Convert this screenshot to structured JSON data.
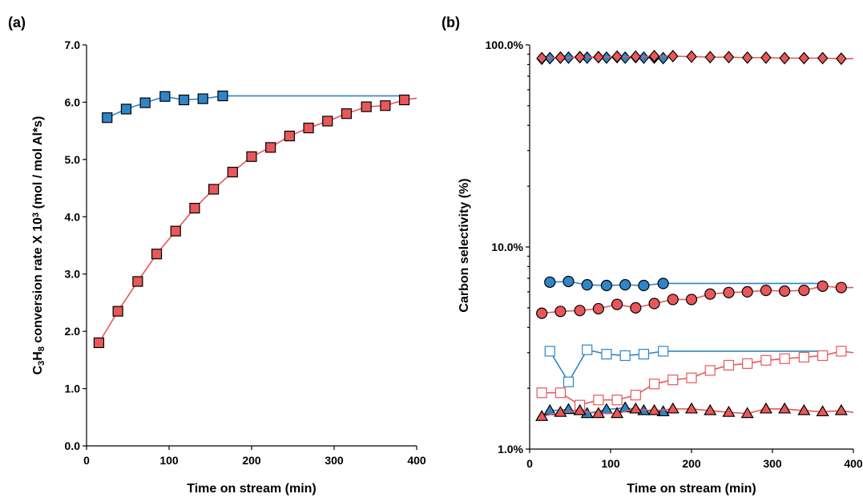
{
  "colors": {
    "blue": "#2E86C9",
    "red": "#E8575A",
    "blue_line": "#2E86C9",
    "red_line": "#E8575A"
  },
  "chart_data": [
    {
      "type": "line",
      "panel_label": "(a)",
      "xlabel": "Time on stream (min)",
      "ylabel_parts": [
        "C",
        "3",
        "H",
        "8",
        " conversion rate X 10",
        "3",
        "  (mol / mol Al*s)"
      ],
      "xlim": [
        0,
        400
      ],
      "ylim": [
        0,
        7
      ],
      "x_ticks": [
        0,
        100,
        200,
        300,
        400
      ],
      "x_tick_labels": [
        "0",
        "100",
        "200",
        "300",
        "400"
      ],
      "y_ticks": [
        0,
        1,
        2,
        3,
        4,
        5,
        6,
        7
      ],
      "y_tick_labels": [
        "0.0",
        "1.0",
        "2.0",
        "3.0",
        "4.0",
        "5.0",
        "6.0",
        "7.0"
      ],
      "series": [
        {
          "color": "blue",
          "marker": "square",
          "filled": true,
          "x": [
            25,
            48,
            71,
            95,
            118,
            141,
            165
          ],
          "y": [
            5.73,
            5.88,
            5.99,
            6.1,
            6.04,
            6.06,
            6.11
          ],
          "line_extend_to": [
            385,
            6.11
          ]
        },
        {
          "color": "red",
          "marker": "square",
          "filled": true,
          "x": [
            15,
            38,
            62,
            85,
            108,
            131,
            154,
            177,
            200,
            223,
            246,
            269,
            292,
            315,
            339,
            362,
            385
          ],
          "y": [
            1.8,
            2.35,
            2.87,
            3.35,
            3.75,
            4.15,
            4.48,
            4.78,
            5.05,
            5.21,
            5.41,
            5.55,
            5.67,
            5.8,
            5.92,
            5.94,
            6.04
          ],
          "line_extend_to": [
            400,
            6.07
          ]
        }
      ]
    },
    {
      "type": "line",
      "panel_label": "(b)",
      "xlabel": "Time on stream (min)",
      "ylabel": "Carbon selectivity (%)",
      "y_scale": "log",
      "xlim": [
        0,
        400
      ],
      "ylim": [
        1,
        100
      ],
      "x_ticks": [
        0,
        100,
        200,
        300,
        400
      ],
      "x_tick_labels": [
        "0",
        "100",
        "200",
        "300",
        "400"
      ],
      "y_ticks": [
        1,
        10,
        100
      ],
      "y_tick_labels": [
        "1.0%",
        "10.0%",
        "100.0%"
      ],
      "series": [
        {
          "color": "blue",
          "marker": "diamond",
          "filled": true,
          "x": [
            15,
            25,
            38,
            48,
            62,
            71,
            85,
            95,
            108,
            118,
            131,
            141,
            154,
            165
          ],
          "y": [
            85.5,
            86,
            86.5,
            86.5,
            87,
            86.5,
            87,
            86.5,
            87,
            86.5,
            87,
            86.5,
            86.5,
            86
          ]
        },
        {
          "color": "red",
          "marker": "diamond",
          "filled": true,
          "x": [
            15,
            38,
            62,
            85,
            108,
            131,
            154,
            177,
            200,
            223,
            246,
            269,
            292,
            315,
            339,
            362,
            385
          ],
          "y": [
            86,
            86.5,
            87,
            87,
            87.5,
            87.5,
            88,
            88,
            87.5,
            87,
            87,
            86.5,
            86.5,
            86,
            86,
            86,
            85.5
          ],
          "line_extend_to": [
            400,
            85.5
          ]
        },
        {
          "color": "blue",
          "marker": "circle",
          "filled": true,
          "x": [
            25,
            48,
            71,
            95,
            118,
            141,
            165
          ],
          "y": [
            6.7,
            6.75,
            6.5,
            6.45,
            6.5,
            6.45,
            6.6
          ],
          "line_extend_to": [
            365,
            6.6
          ]
        },
        {
          "color": "red",
          "marker": "circle",
          "filled": true,
          "x": [
            15,
            38,
            62,
            85,
            108,
            131,
            154,
            177,
            200,
            223,
            246,
            269,
            292,
            315,
            339,
            362,
            385
          ],
          "y": [
            4.7,
            4.8,
            4.85,
            4.95,
            5.2,
            5.0,
            5.25,
            5.5,
            5.5,
            5.85,
            5.95,
            6.0,
            6.1,
            6.05,
            6.1,
            6.4,
            6.3
          ],
          "line_extend_to": [
            400,
            6.3
          ]
        },
        {
          "color": "blue",
          "marker": "square",
          "filled": false,
          "x": [
            25,
            48,
            71,
            95,
            118,
            141,
            165
          ],
          "y": [
            3.05,
            2.15,
            3.1,
            2.95,
            2.9,
            2.95,
            3.05
          ],
          "line_extend_to": [
            365,
            3.05
          ]
        },
        {
          "color": "red",
          "marker": "square",
          "filled": false,
          "x": [
            15,
            38,
            62,
            85,
            108,
            131,
            154,
            177,
            200,
            223,
            246,
            269,
            292,
            315,
            339,
            362,
            385
          ],
          "y": [
            1.9,
            1.9,
            1.65,
            1.75,
            1.75,
            1.85,
            2.1,
            2.2,
            2.25,
            2.45,
            2.6,
            2.65,
            2.75,
            2.8,
            2.85,
            2.9,
            3.05
          ],
          "line_extend_to": [
            400,
            3.0
          ]
        },
        {
          "color": "blue",
          "marker": "triangle",
          "filled": true,
          "x": [
            25,
            48,
            71,
            95,
            118,
            141,
            165
          ],
          "y": [
            1.55,
            1.57,
            1.5,
            1.57,
            1.6,
            1.55,
            1.53
          ]
        },
        {
          "color": "red",
          "marker": "triangle",
          "filled": true,
          "x": [
            15,
            38,
            62,
            85,
            108,
            131,
            154,
            177,
            200,
            223,
            246,
            269,
            292,
            315,
            339,
            362,
            385
          ],
          "y": [
            1.45,
            1.52,
            1.55,
            1.5,
            1.5,
            1.58,
            1.55,
            1.58,
            1.58,
            1.55,
            1.52,
            1.5,
            1.58,
            1.58,
            1.55,
            1.53,
            1.55
          ],
          "line_extend_to": [
            400,
            1.52
          ]
        }
      ]
    }
  ]
}
